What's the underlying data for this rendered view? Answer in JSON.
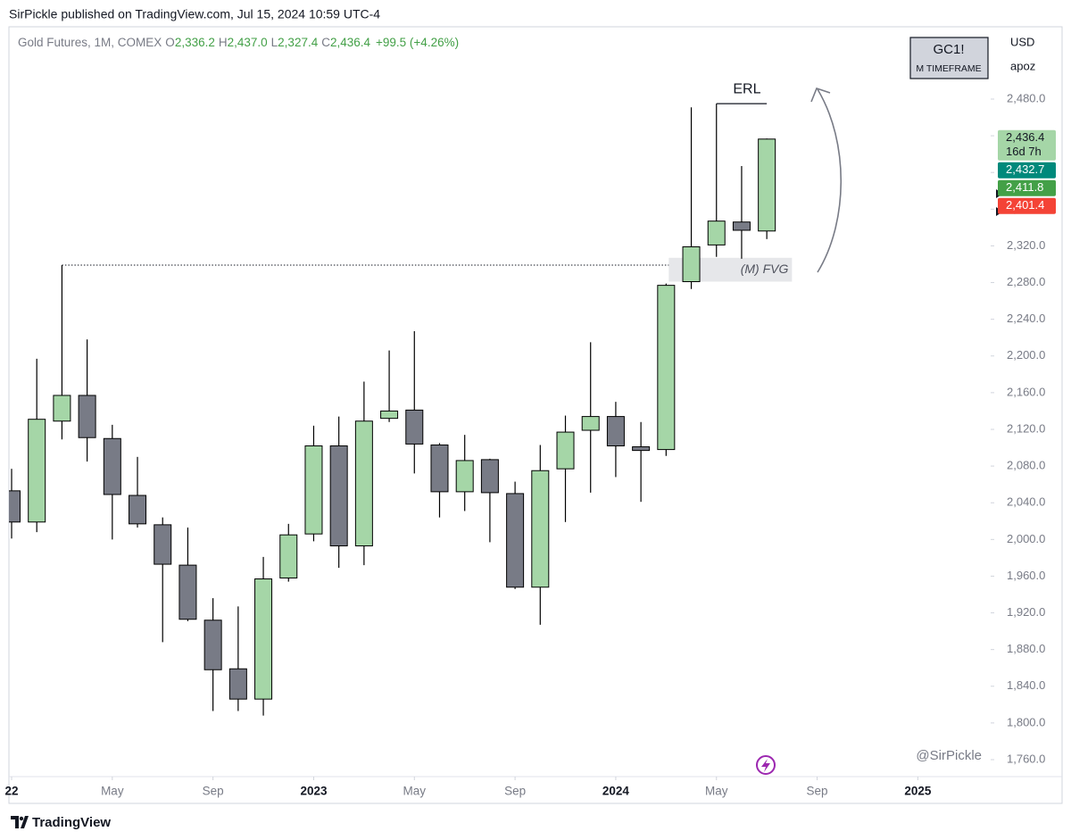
{
  "page": {
    "published": "SirPickle published on TradingView.com, Jul 15, 2024 10:59 UTC-4",
    "footer": "TradingView",
    "watermark": "@SirPickle"
  },
  "chart_data": {
    "type": "candlestick",
    "symbol": "Gold Futures, 1M, COMEX",
    "ohlc_legend": [
      {
        "key": "O",
        "value": "2,336.2"
      },
      {
        "key": "H",
        "value": "2,437.0"
      },
      {
        "key": "L",
        "value": "2,327.4"
      },
      {
        "key": "C",
        "value": "2,436.4"
      }
    ],
    "change": "+99.5 (+4.26%)",
    "ticker_box": {
      "title": "GC1!",
      "subtitle": "M TIMEFRAME"
    },
    "currency": "USD",
    "scale_mode": "apoz",
    "x": [
      "2022-01",
      "2022-02",
      "2022-03",
      "2022-04",
      "2022-05",
      "2022-06",
      "2022-07",
      "2022-08",
      "2022-09",
      "2022-10",
      "2022-11",
      "2022-12",
      "2023-01",
      "2023-02",
      "2023-03",
      "2023-04",
      "2023-05",
      "2023-06",
      "2023-07",
      "2023-08",
      "2023-09",
      "2023-10",
      "2023-11",
      "2023-12",
      "2024-01",
      "2024-02",
      "2024-03",
      "2024-04",
      "2024-05",
      "2024-06",
      "2024-07"
    ],
    "open": [
      2053,
      2019,
      2129,
      2157,
      2110,
      2048,
      2016,
      1972,
      1912,
      1859,
      1826,
      1958,
      2006,
      2102,
      1993,
      2132,
      2141,
      2103,
      2052,
      2087,
      2050,
      1948,
      2077,
      2119,
      2134,
      2101,
      2098,
      2281,
      2321,
      2346,
      2336.2
    ],
    "high": [
      2077,
      2197,
      2299,
      2218,
      2125,
      2090,
      2024,
      2013,
      1936,
      1927,
      1981,
      2017,
      2124,
      2134,
      2172,
      2206,
      2227,
      2105,
      2114,
      2088,
      2063,
      2103,
      2135,
      2215,
      2150,
      2128,
      2279,
      2471,
      2475,
      2407,
      2437.0
    ],
    "low": [
      2001,
      2008,
      2109,
      2085,
      2000,
      2013,
      1888,
      1911,
      1813,
      1813,
      1808,
      1954,
      1998,
      1969,
      1972,
      2128,
      2072,
      2024,
      2031,
      1997,
      1946,
      1907,
      2019,
      2051,
      2068,
      2041,
      2091,
      2273,
      2308,
      2306,
      2327.4
    ],
    "close": [
      2019,
      2131,
      2157,
      2111,
      2049,
      2017,
      1973,
      1913,
      1858,
      1826,
      1957,
      2005,
      2102,
      1993,
      2129,
      2140,
      2104,
      2052,
      2086,
      2051,
      1948,
      2075,
      2117,
      2134,
      2102,
      2097,
      2277,
      2319,
      2347,
      2337,
      2436.4
    ],
    "up_color": "#a5d6a7",
    "down_color": "#787b86",
    "border_color": "#000000",
    "xlim": [
      "2022-01",
      "2025-04"
    ],
    "xticks": [
      {
        "value": "2022-01",
        "label": "22"
      },
      {
        "value": "2022-05",
        "label": "May"
      },
      {
        "value": "2022-09",
        "label": "Sep"
      },
      {
        "value": "2023-01",
        "label": "2023"
      },
      {
        "value": "2023-05",
        "label": "May"
      },
      {
        "value": "2023-09",
        "label": "Sep"
      },
      {
        "value": "2024-01",
        "label": "2024"
      },
      {
        "value": "2024-05",
        "label": "May"
      },
      {
        "value": "2024-09",
        "label": "Sep"
      },
      {
        "value": "2025-01",
        "label": "2025"
      }
    ],
    "ylim": [
      1741.5,
      2558.8
    ],
    "yticks": [
      {
        "value": 1760,
        "label": "1,760.0"
      },
      {
        "value": 1800,
        "label": "1,800.0"
      },
      {
        "value": 1840,
        "label": "1,840.0"
      },
      {
        "value": 1880,
        "label": "1,880.0"
      },
      {
        "value": 1920,
        "label": "1,920.0"
      },
      {
        "value": 1960,
        "label": "1,960.0"
      },
      {
        "value": 2000,
        "label": "2,000.0"
      },
      {
        "value": 2040,
        "label": "2,040.0"
      },
      {
        "value": 2080,
        "label": "2,080.0"
      },
      {
        "value": 2120,
        "label": "2,120.0"
      },
      {
        "value": 2160,
        "label": "2,160.0"
      },
      {
        "value": 2200,
        "label": "2,200.0"
      },
      {
        "value": 2240,
        "label": "2,240.0"
      },
      {
        "value": 2280,
        "label": "2,280.0"
      },
      {
        "value": 2320,
        "label": "2,320.0"
      },
      {
        "value": 2360,
        "label": "2,360.0"
      },
      {
        "value": 2400,
        "label": "2,400.0"
      },
      {
        "value": 2440,
        "label": "2,440.0"
      },
      {
        "value": 2480,
        "label": "2,480.0"
      }
    ],
    "price_tags": [
      {
        "value": 2436.4,
        "label": "2,436.4",
        "sublabel": "16d 7h",
        "color": "#a5d6a7",
        "text_color": "#131722"
      },
      {
        "value": 2432.7,
        "label": "2,432.7",
        "color": "#00897b",
        "text_color": "#ffffff"
      },
      {
        "value": 2411.8,
        "label": "2,411.8",
        "color": "#43a047",
        "text_color": "#ffffff"
      },
      {
        "value": 2401.4,
        "label": "2,401.4",
        "color": "#f44336",
        "text_color": "#ffffff"
      }
    ],
    "annotations": {
      "erl": {
        "text": "ERL",
        "value": 2475,
        "from": "2024-05",
        "to": "2024-07"
      },
      "fvg": {
        "text": "(M) FVG",
        "low": 2281,
        "high": 2307,
        "from": "2024-03",
        "to": "2024-08"
      },
      "level": {
        "value": 2299,
        "from": "2022-03",
        "to": "2024-03"
      }
    }
  }
}
